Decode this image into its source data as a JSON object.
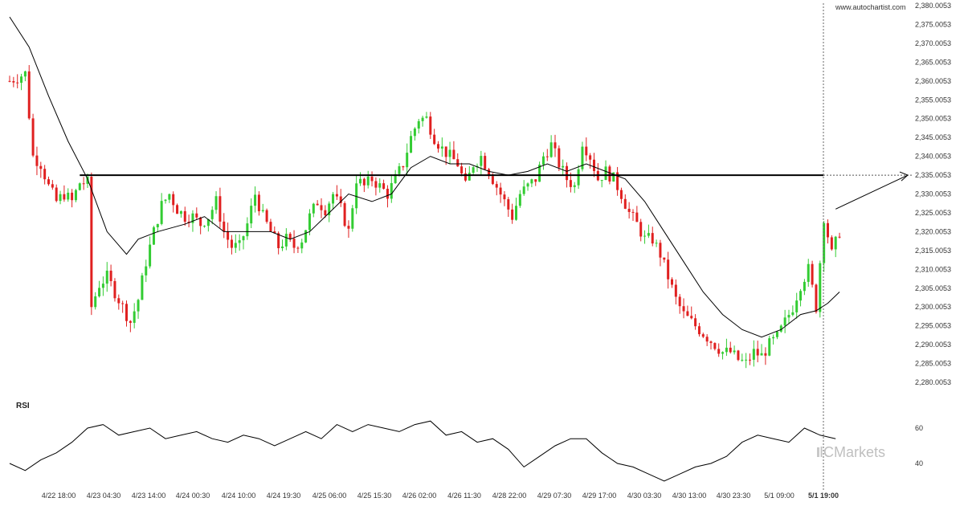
{
  "website": "www.autochartist.com",
  "rsi_label": "RSI",
  "brand": "ICMarkets",
  "colors": {
    "up": "#33cc33",
    "down": "#e02020",
    "line": "#000000"
  },
  "chart_data": {
    "type": "candlestick",
    "y_ticks": [
      "2,380.0053",
      "2,375.0053",
      "2,370.0053",
      "2,365.0053",
      "2,360.0053",
      "2,355.0053",
      "2,350.0053",
      "2,345.0053",
      "2,340.0053",
      "2,335.0053",
      "2,330.0053",
      "2,325.0053",
      "2,320.0053",
      "2,315.0053",
      "2,310.0053",
      "2,305.0053",
      "2,300.0053",
      "2,295.0053",
      "2,290.0053",
      "2,285.0053",
      "2,280.0053"
    ],
    "ylim": [
      2277.5,
      2380.0
    ],
    "x_ticks": [
      "4/22 18:00",
      "4/23 04:30",
      "4/23 14:00",
      "4/24 00:30",
      "4/24 10:00",
      "4/24 19:30",
      "4/25 06:00",
      "4/25 15:30",
      "4/26 02:00",
      "4/26 11:30",
      "4/28 22:00",
      "4/29 07:30",
      "4/29 17:00",
      "4/30 03:30",
      "4/30 13:00",
      "4/30 23:30",
      "5/1 09:00",
      "5/1 19:00"
    ],
    "current_time_label": "5/1 19:00",
    "resistance_level": 2335.0,
    "close_path": [
      [
        0,
        2360
      ],
      [
        4,
        2362
      ],
      [
        6,
        2340
      ],
      [
        8,
        2338
      ],
      [
        10,
        2332
      ],
      [
        12,
        2328
      ],
      [
        14,
        2330
      ],
      [
        16,
        2328
      ],
      [
        18,
        2333
      ],
      [
        20,
        2333
      ],
      [
        21,
        2300
      ],
      [
        23,
        2306
      ],
      [
        25,
        2308
      ],
      [
        27,
        2304
      ],
      [
        29,
        2300
      ],
      [
        31,
        2296
      ],
      [
        33,
        2302
      ],
      [
        35,
        2312
      ],
      [
        37,
        2320
      ],
      [
        39,
        2327
      ],
      [
        41,
        2330
      ],
      [
        43,
        2326
      ],
      [
        45,
        2324
      ],
      [
        47,
        2324
      ],
      [
        49,
        2322
      ],
      [
        51,
        2324
      ],
      [
        53,
        2328
      ],
      [
        55,
        2320
      ],
      [
        57,
        2316
      ],
      [
        59,
        2316
      ],
      [
        61,
        2322
      ],
      [
        63,
        2330
      ],
      [
        65,
        2324
      ],
      [
        67,
        2320
      ],
      [
        69,
        2316
      ],
      [
        71,
        2318
      ],
      [
        73,
        2316
      ],
      [
        75,
        2318
      ],
      [
        77,
        2324
      ],
      [
        79,
        2328
      ],
      [
        81,
        2326
      ],
      [
        83,
        2330
      ],
      [
        85,
        2326
      ],
      [
        87,
        2320
      ],
      [
        89,
        2334
      ],
      [
        91,
        2332
      ],
      [
        93,
        2334
      ],
      [
        95,
        2332
      ],
      [
        97,
        2330
      ],
      [
        99,
        2334
      ],
      [
        101,
        2338
      ],
      [
        103,
        2345
      ],
      [
        105,
        2350
      ],
      [
        107,
        2350
      ],
      [
        109,
        2345
      ],
      [
        111,
        2342
      ],
      [
        113,
        2340
      ],
      [
        115,
        2338
      ],
      [
        117,
        2332
      ],
      [
        119,
        2338
      ],
      [
        121,
        2340
      ],
      [
        123,
        2336
      ],
      [
        125,
        2332
      ],
      [
        127,
        2328
      ],
      [
        129,
        2324
      ],
      [
        131,
        2330
      ],
      [
        133,
        2332
      ],
      [
        135,
        2334
      ],
      [
        137,
        2340
      ],
      [
        139,
        2343
      ],
      [
        141,
        2338
      ],
      [
        143,
        2334
      ],
      [
        145,
        2332
      ],
      [
        147,
        2344
      ],
      [
        149,
        2340
      ],
      [
        151,
        2334
      ],
      [
        153,
        2336
      ],
      [
        155,
        2334
      ],
      [
        157,
        2330
      ],
      [
        159,
        2325
      ],
      [
        161,
        2322
      ],
      [
        163,
        2318
      ],
      [
        165,
        2318
      ],
      [
        167,
        2314
      ],
      [
        169,
        2308
      ],
      [
        171,
        2302
      ],
      [
        173,
        2298
      ],
      [
        175,
        2296
      ],
      [
        177,
        2294
      ],
      [
        179,
        2292
      ],
      [
        181,
        2290
      ],
      [
        183,
        2288
      ],
      [
        185,
        2288
      ],
      [
        187,
        2286
      ],
      [
        189,
        2285
      ],
      [
        191,
        2288
      ],
      [
        193,
        2287
      ],
      [
        195,
        2290
      ],
      [
        197,
        2292
      ],
      [
        199,
        2296
      ],
      [
        201,
        2300
      ],
      [
        203,
        2306
      ],
      [
        205,
        2310
      ],
      [
        207,
        2300
      ],
      [
        209,
        2324
      ],
      [
        211,
        2314
      ],
      [
        213,
        2320
      ]
    ],
    "ma_path": [
      [
        0,
        2377
      ],
      [
        5,
        2369
      ],
      [
        10,
        2356
      ],
      [
        15,
        2344
      ],
      [
        20,
        2334
      ],
      [
        25,
        2320
      ],
      [
        30,
        2314
      ],
      [
        33,
        2318
      ],
      [
        38,
        2320
      ],
      [
        45,
        2322
      ],
      [
        50,
        2324
      ],
      [
        55,
        2320
      ],
      [
        62,
        2320
      ],
      [
        67,
        2320
      ],
      [
        72,
        2318
      ],
      [
        77,
        2320
      ],
      [
        82,
        2325
      ],
      [
        87,
        2330
      ],
      [
        93,
        2328
      ],
      [
        98,
        2330
      ],
      [
        103,
        2337
      ],
      [
        108,
        2340
      ],
      [
        113,
        2338
      ],
      [
        118,
        2338
      ],
      [
        123,
        2336
      ],
      [
        128,
        2335
      ],
      [
        133,
        2336
      ],
      [
        138,
        2338
      ],
      [
        143,
        2336
      ],
      [
        148,
        2338
      ],
      [
        153,
        2336
      ],
      [
        158,
        2334
      ],
      [
        163,
        2328
      ],
      [
        168,
        2320
      ],
      [
        173,
        2312
      ],
      [
        178,
        2304
      ],
      [
        183,
        2298
      ],
      [
        188,
        2294
      ],
      [
        193,
        2292
      ],
      [
        198,
        2294
      ],
      [
        203,
        2298
      ],
      [
        207,
        2299
      ],
      [
        210,
        2301
      ],
      [
        213,
        2304
      ]
    ],
    "rsi": {
      "y_ticks": [
        "60",
        "40"
      ],
      "ylim": [
        25,
        70
      ],
      "path": [
        [
          0,
          40
        ],
        [
          4,
          36
        ],
        [
          8,
          42
        ],
        [
          12,
          46
        ],
        [
          16,
          52
        ],
        [
          20,
          60
        ],
        [
          24,
          62
        ],
        [
          28,
          56
        ],
        [
          32,
          58
        ],
        [
          36,
          60
        ],
        [
          40,
          54
        ],
        [
          44,
          56
        ],
        [
          48,
          58
        ],
        [
          52,
          54
        ],
        [
          56,
          52
        ],
        [
          60,
          56
        ],
        [
          64,
          54
        ],
        [
          68,
          50
        ],
        [
          72,
          54
        ],
        [
          76,
          58
        ],
        [
          80,
          54
        ],
        [
          84,
          62
        ],
        [
          88,
          58
        ],
        [
          92,
          62
        ],
        [
          96,
          60
        ],
        [
          100,
          58
        ],
        [
          104,
          62
        ],
        [
          108,
          64
        ],
        [
          112,
          56
        ],
        [
          116,
          58
        ],
        [
          120,
          52
        ],
        [
          124,
          54
        ],
        [
          128,
          48
        ],
        [
          132,
          38
        ],
        [
          136,
          44
        ],
        [
          140,
          50
        ],
        [
          144,
          54
        ],
        [
          148,
          54
        ],
        [
          152,
          46
        ],
        [
          156,
          40
        ],
        [
          160,
          38
        ],
        [
          164,
          34
        ],
        [
          168,
          30
        ],
        [
          172,
          34
        ],
        [
          176,
          38
        ],
        [
          180,
          40
        ],
        [
          184,
          44
        ],
        [
          188,
          52
        ],
        [
          192,
          56
        ],
        [
          196,
          54
        ],
        [
          200,
          52
        ],
        [
          204,
          60
        ],
        [
          208,
          56
        ],
        [
          212,
          54
        ]
      ]
    },
    "arrow": {
      "from": [
        212,
        2326
      ],
      "to": [
        224,
        2335
      ]
    }
  }
}
